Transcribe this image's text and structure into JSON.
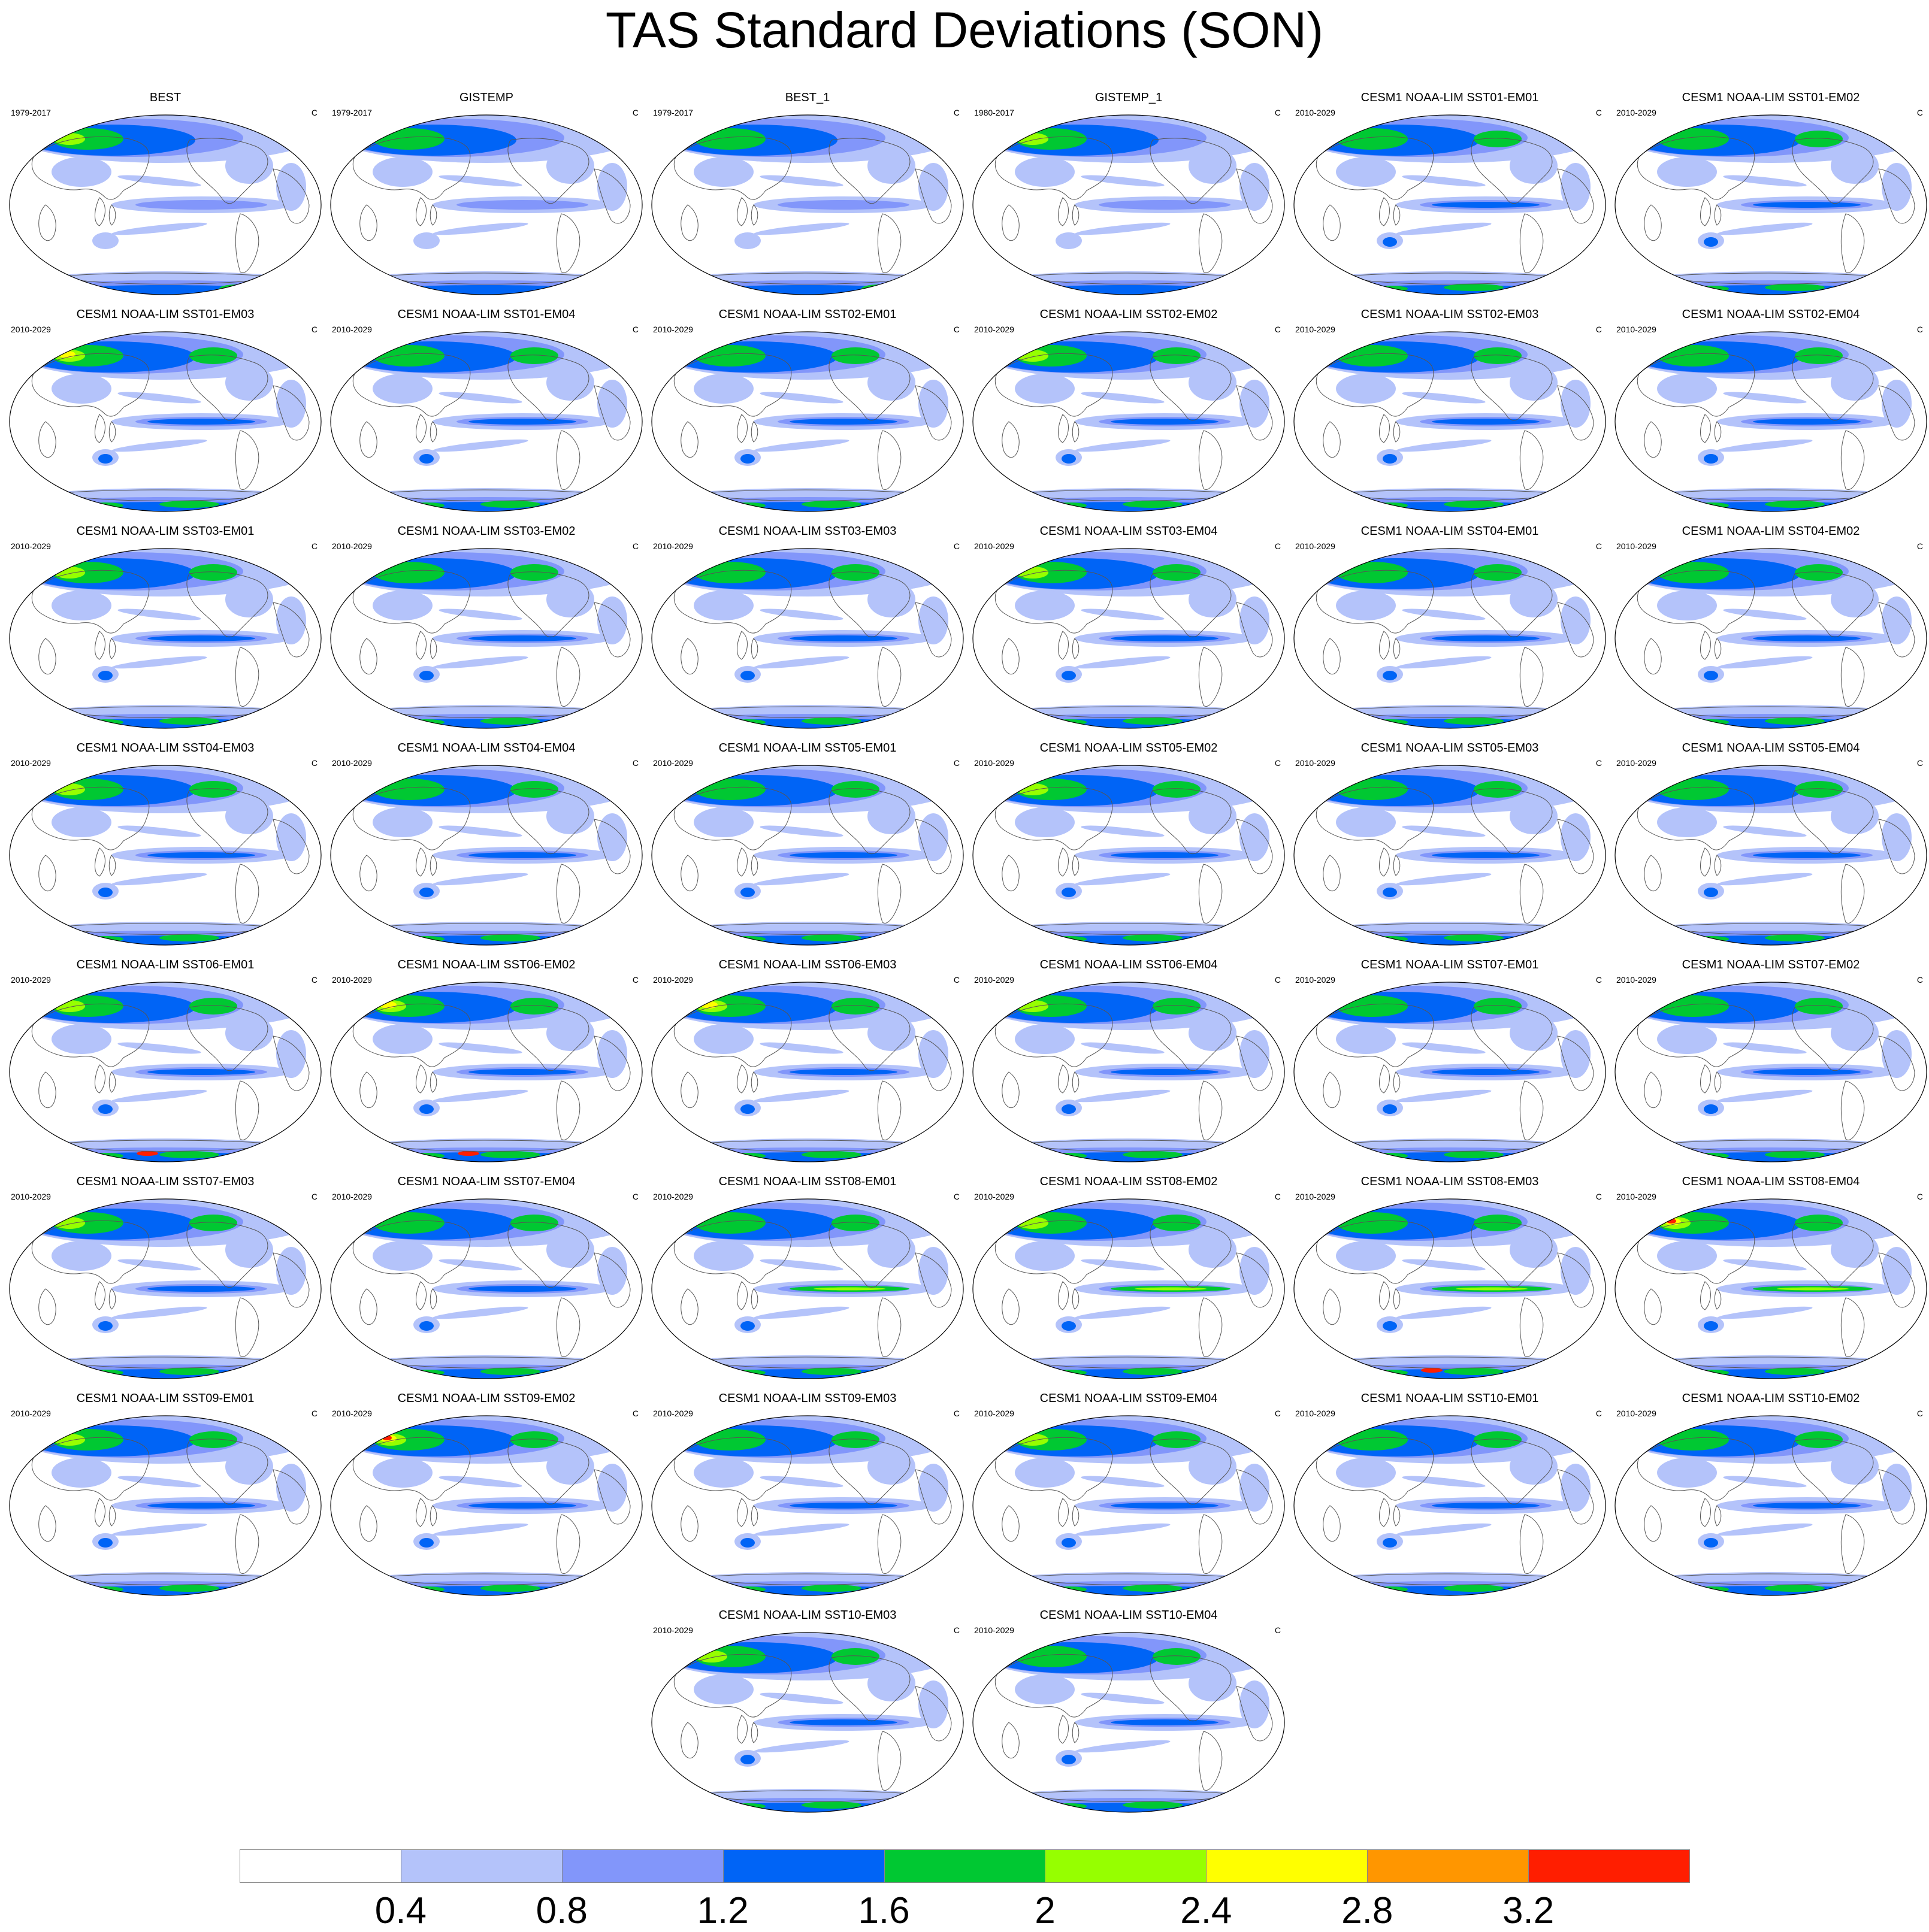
{
  "title": "TAS Standard Deviations (SON)",
  "units": "C",
  "colorbar": {
    "colors": [
      "#ffffff",
      "#b4c3fa",
      "#8296fa",
      "#0064f6",
      "#00c832",
      "#96ff00",
      "#ffff00",
      "#ff9600",
      "#ff1e00"
    ],
    "labels": [
      "0.4",
      "0.8",
      "1.2",
      "1.6",
      "2",
      "2.4",
      "2.8",
      "3.2"
    ]
  },
  "panels": [
    {
      "title": "BEST",
      "years": "1979-2017"
    },
    {
      "title": "GISTEMP",
      "years": "1979-2017"
    },
    {
      "title": "BEST_1",
      "years": "1979-2017"
    },
    {
      "title": "GISTEMP_1",
      "years": "1980-2017"
    },
    {
      "title": "CESM1 NOAA-LIM SST01-EM01",
      "years": "2010-2029"
    },
    {
      "title": "CESM1 NOAA-LIM SST01-EM02",
      "years": "2010-2029"
    },
    {
      "title": "CESM1 NOAA-LIM SST01-EM03",
      "years": "2010-2029"
    },
    {
      "title": "CESM1 NOAA-LIM SST01-EM04",
      "years": "2010-2029"
    },
    {
      "title": "CESM1 NOAA-LIM SST02-EM01",
      "years": "2010-2029"
    },
    {
      "title": "CESM1 NOAA-LIM SST02-EM02",
      "years": "2010-2029"
    },
    {
      "title": "CESM1 NOAA-LIM SST02-EM03",
      "years": "2010-2029"
    },
    {
      "title": "CESM1 NOAA-LIM SST02-EM04",
      "years": "2010-2029"
    },
    {
      "title": "CESM1 NOAA-LIM SST03-EM01",
      "years": "2010-2029"
    },
    {
      "title": "CESM1 NOAA-LIM SST03-EM02",
      "years": "2010-2029"
    },
    {
      "title": "CESM1 NOAA-LIM SST03-EM03",
      "years": "2010-2029"
    },
    {
      "title": "CESM1 NOAA-LIM SST03-EM04",
      "years": "2010-2029"
    },
    {
      "title": "CESM1 NOAA-LIM SST04-EM01",
      "years": "2010-2029"
    },
    {
      "title": "CESM1 NOAA-LIM SST04-EM02",
      "years": "2010-2029"
    },
    {
      "title": "CESM1 NOAA-LIM SST04-EM03",
      "years": "2010-2029"
    },
    {
      "title": "CESM1 NOAA-LIM SST04-EM04",
      "years": "2010-2029"
    },
    {
      "title": "CESM1 NOAA-LIM SST05-EM01",
      "years": "2010-2029"
    },
    {
      "title": "CESM1 NOAA-LIM SST05-EM02",
      "years": "2010-2029"
    },
    {
      "title": "CESM1 NOAA-LIM SST05-EM03",
      "years": "2010-2029"
    },
    {
      "title": "CESM1 NOAA-LIM SST05-EM04",
      "years": "2010-2029"
    },
    {
      "title": "CESM1 NOAA-LIM SST06-EM01",
      "years": "2010-2029"
    },
    {
      "title": "CESM1 NOAA-LIM SST06-EM02",
      "years": "2010-2029"
    },
    {
      "title": "CESM1 NOAA-LIM SST06-EM03",
      "years": "2010-2029"
    },
    {
      "title": "CESM1 NOAA-LIM SST06-EM04",
      "years": "2010-2029"
    },
    {
      "title": "CESM1 NOAA-LIM SST07-EM01",
      "years": "2010-2029"
    },
    {
      "title": "CESM1 NOAA-LIM SST07-EM02",
      "years": "2010-2029"
    },
    {
      "title": "CESM1 NOAA-LIM SST07-EM03",
      "years": "2010-2029"
    },
    {
      "title": "CESM1 NOAA-LIM SST07-EM04",
      "years": "2010-2029"
    },
    {
      "title": "CESM1 NOAA-LIM SST08-EM01",
      "years": "2010-2029"
    },
    {
      "title": "CESM1 NOAA-LIM SST08-EM02",
      "years": "2010-2029"
    },
    {
      "title": "CESM1 NOAA-LIM SST08-EM03",
      "years": "2010-2029"
    },
    {
      "title": "CESM1 NOAA-LIM SST08-EM04",
      "years": "2010-2029"
    },
    {
      "title": "CESM1 NOAA-LIM SST09-EM01",
      "years": "2010-2029"
    },
    {
      "title": "CESM1 NOAA-LIM SST09-EM02",
      "years": "2010-2029"
    },
    {
      "title": "CESM1 NOAA-LIM SST09-EM03",
      "years": "2010-2029"
    },
    {
      "title": "CESM1 NOAA-LIM SST09-EM04",
      "years": "2010-2029"
    },
    {
      "title": "CESM1 NOAA-LIM SST10-EM01",
      "years": "2010-2029"
    },
    {
      "title": "CESM1 NOAA-LIM SST10-EM02",
      "years": "2010-2029"
    },
    {
      "title": "CESM1 NOAA-LIM SST10-EM03",
      "years": "2010-2029"
    },
    {
      "title": "CESM1 NOAA-LIM SST10-EM04",
      "years": "2010-2029"
    }
  ]
}
